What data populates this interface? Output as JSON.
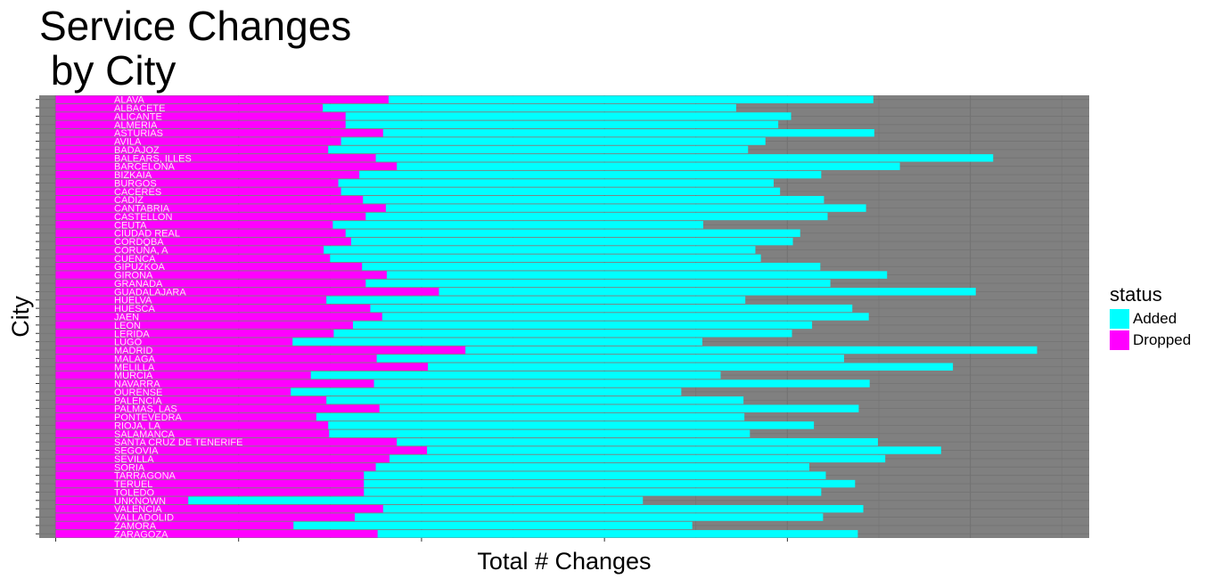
{
  "title": "Service Changes\n by City",
  "chart_data": {
    "type": "bar",
    "orientation": "horizontal",
    "stacked": true,
    "xlabel": "Total # Changes",
    "ylabel": "City",
    "x_tick_labels_visible": false,
    "grid": true,
    "legend": {
      "title": "status",
      "position": "right",
      "entries": [
        "Added",
        "Dropped"
      ]
    },
    "colors": {
      "Added": "#00ffff",
      "Dropped": "#ff00ff",
      "panel": "#808080",
      "grid": "#737373",
      "city_label": "#ffe4f2"
    },
    "categories": [
      "ALAVA",
      "ALBACETE",
      "ALICANTE",
      "ALMERIA",
      "ASTURIAS",
      "AVILA",
      "BADAJOZ",
      "BALEARS, ILLES",
      "BARCELONA",
      "BIZKAIA",
      "BURGOS",
      "CACERES",
      "CADIZ",
      "CANTABRIA",
      "CASTELLON",
      "CEUTA",
      "CIUDAD REAL",
      "CORDOBA",
      "CORUÑA, A",
      "CUENCA",
      "GIPUZKOA",
      "GIRONA",
      "GRANADA",
      "GUADALAJARA",
      "HUELVA",
      "HUESCA",
      "JAEN",
      "LEON",
      "LERIDA",
      "LUGO",
      "MADRID",
      "MALAGA",
      "MELILLA",
      "MURCIA",
      "NAVARRA",
      "OURENSE",
      "PALENCIA",
      "PALMAS, LAS",
      "PONTEVEDRA",
      "RIOJA, LA",
      "SALAMANCA",
      "SANTA CRUZ DE TENERIFE",
      "SEGOVIA",
      "SEVILLA",
      "SORIA",
      "TARRAGONA",
      "TERUEL",
      "TOLEDO",
      "UNKNOWN",
      "VALENCIA",
      "VALLADOLID",
      "ZAMORA",
      "ZARAGOZA"
    ],
    "series": [
      {
        "name": "Dropped",
        "values": [
          364,
          292,
          317,
          317,
          358,
          312,
          298,
          350,
          373,
          332,
          309,
          312,
          336,
          361,
          339,
          303,
          317,
          323,
          293,
          300,
          335,
          362,
          339,
          419,
          296,
          344,
          357,
          325,
          304,
          259,
          448,
          351,
          407,
          279,
          348,
          257,
          296,
          354,
          285,
          298,
          299,
          373,
          406,
          365,
          350,
          337,
          337,
          337,
          145,
          358,
          327,
          260,
          352
        ]
      },
      {
        "name": "Added",
        "values": [
          530,
          452,
          487,
          473,
          537,
          464,
          459,
          675,
          550,
          505,
          476,
          480,
          504,
          525,
          505,
          405,
          497,
          483,
          472,
          471,
          501,
          547,
          508,
          587,
          458,
          527,
          532,
          502,
          501,
          448,
          625,
          511,
          574,
          448,
          542,
          427,
          456,
          524,
          468,
          531,
          460,
          526,
          562,
          542,
          474,
          505,
          537,
          500,
          497,
          525,
          512,
          436,
          525
        ]
      }
    ],
    "xlim": [
      -18,
      1130
    ]
  }
}
